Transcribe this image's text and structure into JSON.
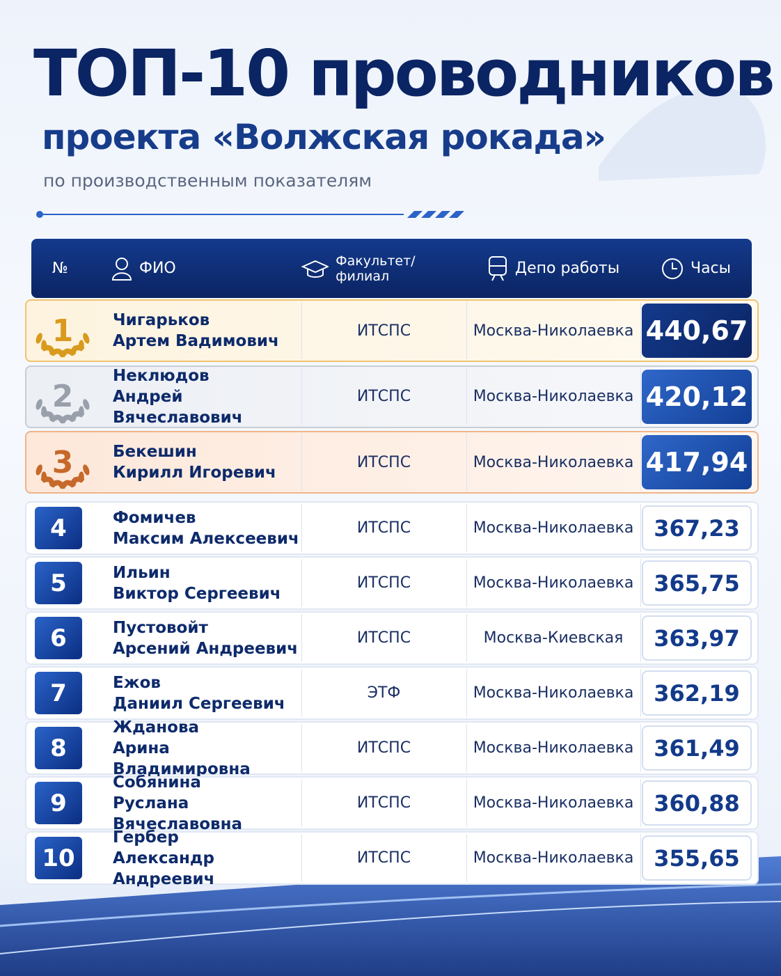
{
  "header": {
    "title": "ТОП-10 проводников",
    "subtitle": "проекта «Волжская рокада»",
    "caption": "по производственным показателям"
  },
  "table": {
    "columns": [
      "№",
      "ФИО",
      "Факультет/филиал",
      "Депо работы",
      "Часы"
    ],
    "rows": [
      {
        "rank": "1",
        "surname": "Чигарьков",
        "given": "Артем Вадимович",
        "faculty": "ИТСПС",
        "depot": "Москва-Николаевка",
        "hours": "440,67"
      },
      {
        "rank": "2",
        "surname": "Неклюдов",
        "given": "Андрей Вячеславович",
        "faculty": "ИТСПС",
        "depot": "Москва-Николаевка",
        "hours": "420,12"
      },
      {
        "rank": "3",
        "surname": "Бекешин",
        "given": "Кирилл Игоревич",
        "faculty": "ИТСПС",
        "depot": "Москва-Николаевка",
        "hours": "417,94"
      },
      {
        "rank": "4",
        "surname": "Фомичев",
        "given": "Максим Алексеевич",
        "faculty": "ИТСПС",
        "depot": "Москва-Николаевка",
        "hours": "367,23"
      },
      {
        "rank": "5",
        "surname": "Ильин",
        "given": "Виктор Сергеевич",
        "faculty": "ИТСПС",
        "depot": "Москва-Николаевка",
        "hours": "365,75"
      },
      {
        "rank": "6",
        "surname": "Пустовойт",
        "given": "Арсений Андреевич",
        "faculty": "ИТСПС",
        "depot": "Москва-Киевская",
        "hours": "363,97"
      },
      {
        "rank": "7",
        "surname": "Ежов",
        "given": "Даниил Сергеевич",
        "faculty": "ЭТФ",
        "depot": "Москва-Николаевка",
        "hours": "362,19"
      },
      {
        "rank": "8",
        "surname": "Жданова",
        "given": "Арина Владимировна",
        "faculty": "ИТСПС",
        "depot": "Москва-Николаевка",
        "hours": "361,49"
      },
      {
        "rank": "9",
        "surname": "Собянина",
        "given": "Руслана Вячеславовна",
        "faculty": "ИТСПС",
        "depot": "Москва-Николаевка",
        "hours": "360,88"
      },
      {
        "rank": "10",
        "surname": "Гербер",
        "given": "Александр Андреевич",
        "faculty": "ИТСПС",
        "depot": "Москва-Николаевка",
        "hours": "355,65"
      }
    ]
  }
}
